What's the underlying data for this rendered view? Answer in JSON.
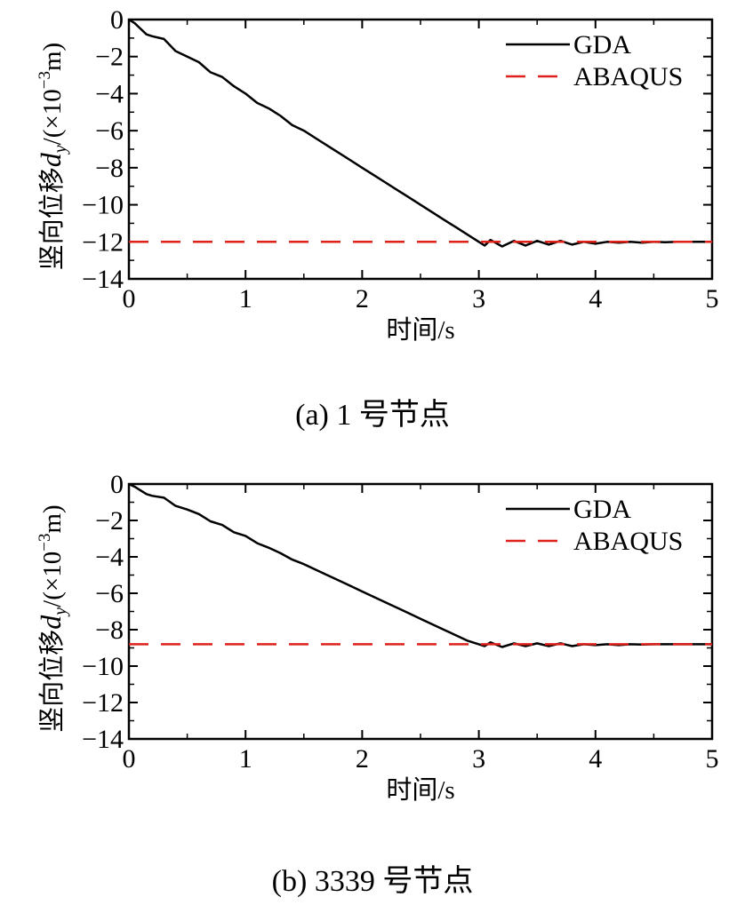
{
  "chart_data": [
    {
      "type": "line",
      "caption": "(a) 1 号节点",
      "xlabel": "时间/s",
      "ylabel": {
        "main": "竖向位移",
        "symbol": "d",
        "subscript": "y",
        "unit_open": "/(×10",
        "exponent": "−3",
        "unit_close": "m)"
      },
      "xlim": [
        0,
        5
      ],
      "ylim": [
        -14,
        0
      ],
      "xticks": [
        0,
        1,
        2,
        3,
        4,
        5
      ],
      "yticks": [
        0,
        -2,
        -4,
        -6,
        -8,
        -10,
        -12,
        -14
      ],
      "xtick_labels": [
        "0",
        "1",
        "2",
        "3",
        "4",
        "5"
      ],
      "ytick_labels": [
        "0",
        "−2",
        "−4",
        "−6",
        "−8",
        "−10",
        "−12",
        "−14"
      ],
      "legend_position": "top-right",
      "series": [
        {
          "name": "GDA",
          "style": "solid",
          "color": "#000000",
          "x": [
            0,
            0.05,
            0.1,
            0.15,
            0.2,
            0.3,
            0.4,
            0.5,
            0.6,
            0.7,
            0.8,
            0.9,
            1.0,
            1.1,
            1.2,
            1.3,
            1.4,
            1.5,
            1.6,
            1.7,
            1.8,
            1.9,
            2.0,
            2.1,
            2.2,
            2.3,
            2.4,
            2.5,
            2.6,
            2.7,
            2.8,
            2.9,
            3.0,
            3.05,
            3.1,
            3.2,
            3.3,
            3.4,
            3.5,
            3.6,
            3.7,
            3.8,
            3.9,
            4.0,
            4.1,
            4.2,
            4.3,
            4.4,
            4.5,
            4.6,
            4.7,
            4.8,
            4.9,
            5.0
          ],
          "values": [
            0,
            -0.2,
            -0.5,
            -0.8,
            -0.9,
            -1.05,
            -1.7,
            -2.0,
            -2.3,
            -2.85,
            -3.1,
            -3.6,
            -4.0,
            -4.5,
            -4.8,
            -5.2,
            -5.7,
            -6.0,
            -6.4,
            -6.8,
            -7.2,
            -7.6,
            -8.0,
            -8.4,
            -8.8,
            -9.2,
            -9.6,
            -10.0,
            -10.4,
            -10.8,
            -11.2,
            -11.6,
            -12.0,
            -12.2,
            -11.9,
            -12.25,
            -11.95,
            -12.2,
            -11.95,
            -12.15,
            -11.95,
            -12.15,
            -12.0,
            -12.1,
            -12.0,
            -12.05,
            -12.0,
            -12.05,
            -12.0,
            -12.02,
            -12.0,
            -12.0,
            -12.0,
            -12.0
          ]
        },
        {
          "name": "ABAQUS",
          "style": "dashed",
          "color": "#e0201b",
          "x": [
            0,
            5
          ],
          "values": [
            -12,
            -12
          ]
        }
      ]
    },
    {
      "type": "line",
      "caption": "(b) 3339 号节点",
      "xlabel": "时间/s",
      "ylabel": {
        "main": "竖向位移",
        "symbol": "d",
        "subscript": "y",
        "unit_open": "/(×10",
        "exponent": "−3",
        "unit_close": "m)"
      },
      "xlim": [
        0,
        5
      ],
      "ylim": [
        -14,
        0
      ],
      "xticks": [
        0,
        1,
        2,
        3,
        4,
        5
      ],
      "yticks": [
        0,
        -2,
        -4,
        -6,
        -8,
        -10,
        -12,
        -14
      ],
      "xtick_labels": [
        "0",
        "1",
        "2",
        "3",
        "4",
        "5"
      ],
      "ytick_labels": [
        "0",
        "−2",
        "−4",
        "−6",
        "−8",
        "−10",
        "−12",
        "−14"
      ],
      "legend_position": "top-right",
      "series": [
        {
          "name": "GDA",
          "style": "solid",
          "color": "#000000",
          "x": [
            0,
            0.05,
            0.1,
            0.15,
            0.2,
            0.3,
            0.4,
            0.5,
            0.6,
            0.7,
            0.8,
            0.9,
            1.0,
            1.1,
            1.2,
            1.3,
            1.4,
            1.5,
            1.6,
            1.7,
            1.8,
            1.9,
            2.0,
            2.1,
            2.2,
            2.3,
            2.4,
            2.5,
            2.6,
            2.7,
            2.8,
            2.9,
            3.0,
            3.05,
            3.1,
            3.2,
            3.3,
            3.4,
            3.5,
            3.6,
            3.7,
            3.8,
            3.9,
            4.0,
            4.1,
            4.2,
            4.3,
            4.4,
            4.5,
            4.6,
            4.7,
            4.8,
            4.9,
            5.0
          ],
          "values": [
            0,
            -0.15,
            -0.35,
            -0.55,
            -0.65,
            -0.75,
            -1.2,
            -1.4,
            -1.65,
            -2.05,
            -2.25,
            -2.65,
            -2.85,
            -3.25,
            -3.5,
            -3.8,
            -4.15,
            -4.4,
            -4.7,
            -5.0,
            -5.3,
            -5.6,
            -5.9,
            -6.2,
            -6.5,
            -6.8,
            -7.1,
            -7.4,
            -7.7,
            -8.0,
            -8.3,
            -8.6,
            -8.8,
            -8.9,
            -8.7,
            -8.95,
            -8.75,
            -8.9,
            -8.75,
            -8.9,
            -8.75,
            -8.9,
            -8.8,
            -8.85,
            -8.8,
            -8.85,
            -8.8,
            -8.82,
            -8.8,
            -8.8,
            -8.8,
            -8.8,
            -8.8,
            -8.8
          ]
        },
        {
          "name": "ABAQUS",
          "style": "dashed",
          "color": "#e0201b",
          "x": [
            0,
            5
          ],
          "values": [
            -8.8,
            -8.8
          ]
        }
      ]
    }
  ]
}
